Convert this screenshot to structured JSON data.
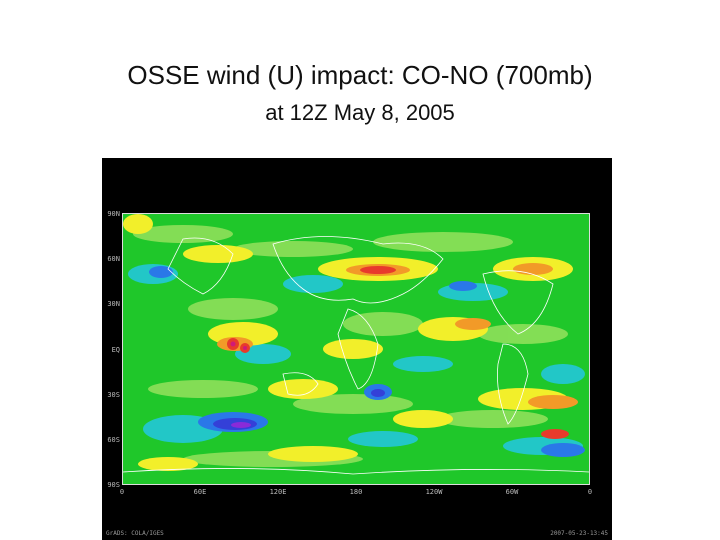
{
  "slide": {
    "title": "OSSE wind (U) impact: CO-NO (700mb)",
    "subtitle": "at 12Z May 8, 2005"
  },
  "map": {
    "lat_labels": [
      "90N",
      "60N",
      "30N",
      "EQ",
      "30S",
      "60S",
      "90S"
    ],
    "lon_labels": [
      "0",
      "60E",
      "120E",
      "180",
      "120W",
      "60W",
      "0"
    ],
    "footer_left": "GrADS: COLA/IGES",
    "footer_right": "2007-05-23-13:45",
    "colors": {
      "background": "#1fc72a",
      "band_light": "#8ee05a",
      "land_outline": "#ffffff",
      "positive_low": "#f2ef2a",
      "positive_mid": "#f29a28",
      "positive_high": "#e83a2c",
      "positive_max": "#d01a78",
      "negative_low": "#22c7c7",
      "negative_mid": "#2a78e8",
      "negative_high": "#3440d8",
      "negative_max": "#8a2ad8"
    }
  }
}
